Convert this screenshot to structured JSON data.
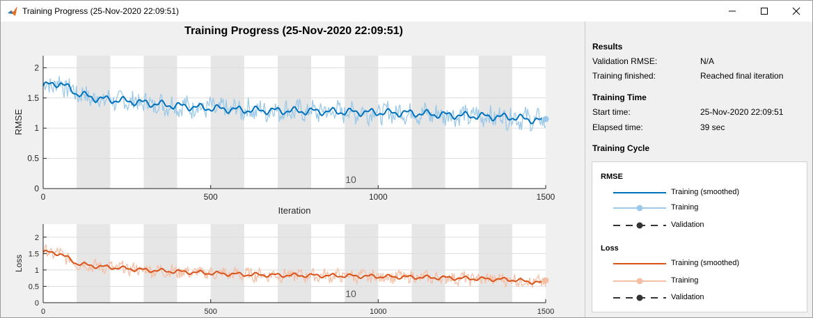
{
  "window": {
    "title": "Training Progress (25-Nov-2020 22:09:51)",
    "app_icon": "matlab-logo-icon"
  },
  "plot": {
    "title": "Training Progress (25-Nov-2020 22:09:51)",
    "epoch_label": "10"
  },
  "chart_data": [
    {
      "type": "line",
      "ylabel": "RMSE",
      "xlabel": "Iteration",
      "xlim": [
        0,
        1500
      ],
      "ylim": [
        0,
        2.2
      ],
      "xticks": [
        0,
        500,
        1000,
        1500
      ],
      "yticks": [
        0,
        0.5,
        1,
        1.5,
        2
      ],
      "epoch_shading": "alternating bands every 100 iterations",
      "series": [
        {
          "name": "Training (smoothed)",
          "color": "#0072bd",
          "x": [
            0,
            50,
            100,
            150,
            200,
            250,
            300,
            400,
            500,
            600,
            700,
            800,
            900,
            1000,
            1100,
            1200,
            1300,
            1400,
            1490
          ],
          "values": [
            1.7,
            1.75,
            1.58,
            1.5,
            1.47,
            1.45,
            1.42,
            1.37,
            1.33,
            1.3,
            1.29,
            1.28,
            1.27,
            1.26,
            1.25,
            1.22,
            1.2,
            1.18,
            1.12
          ]
        },
        {
          "name": "Training",
          "color": "#9bc9e7",
          "noise": 0.16,
          "last": 1.15
        },
        {
          "name": "Validation",
          "color": "#333333"
        }
      ]
    },
    {
      "type": "line",
      "ylabel": "Loss",
      "xlim": [
        0,
        1500
      ],
      "ylim": [
        0,
        2.4
      ],
      "xticks": [
        0,
        500,
        1000,
        1500
      ],
      "yticks": [
        0,
        0.5,
        1,
        1.5,
        2
      ],
      "epoch_shading": "alternating bands every 100 iterations",
      "series": [
        {
          "name": "Training (smoothed)",
          "color": "#d95319",
          "x": [
            0,
            50,
            100,
            150,
            200,
            250,
            300,
            400,
            500,
            600,
            700,
            800,
            900,
            1000,
            1100,
            1200,
            1300,
            1400,
            1490
          ],
          "values": [
            1.55,
            1.5,
            1.2,
            1.12,
            1.08,
            1.04,
            1.0,
            0.95,
            0.9,
            0.86,
            0.84,
            0.83,
            0.82,
            0.8,
            0.78,
            0.76,
            0.73,
            0.7,
            0.6
          ]
        },
        {
          "name": "Training",
          "color": "#f5bfa5",
          "noise": 0.18,
          "last": 0.68
        },
        {
          "name": "Validation",
          "color": "#333333"
        }
      ]
    }
  ],
  "results": {
    "heading": "Results",
    "validation_rmse_label": "Validation RMSE:",
    "validation_rmse_value": "N/A",
    "training_finished_label": "Training finished:",
    "training_finished_value": "Reached final iteration"
  },
  "training_time": {
    "heading": "Training Time",
    "start_label": "Start time:",
    "start_value": "25-Nov-2020 22:09:51",
    "elapsed_label": "Elapsed time:",
    "elapsed_value": "39 sec"
  },
  "training_cycle": {
    "heading": "Training Cycle"
  },
  "legend": {
    "rmse_heading": "RMSE",
    "loss_heading": "Loss",
    "rmse_items": [
      "Training (smoothed)",
      "Training",
      "Validation"
    ],
    "loss_items": [
      "Training (smoothed)",
      "Training",
      "Validation"
    ]
  }
}
